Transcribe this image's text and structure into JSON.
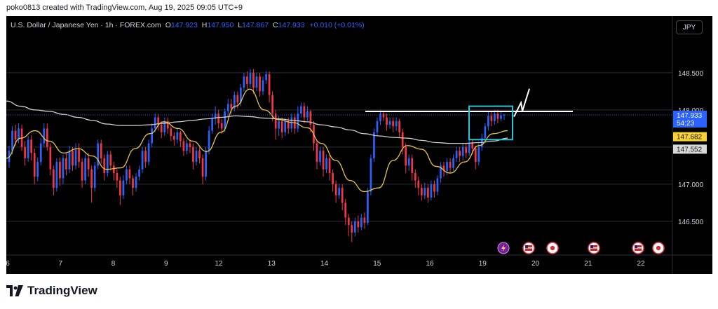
{
  "caption": "poko0813 created with TradingView.com, Aug 19, 2025 09:05 UTC+9",
  "legend": {
    "symbol": "U.S. Dollar / Japanese Yen · 1h · FOREX.com",
    "o_label": "O",
    "o_value": "147.923",
    "h_label": "H",
    "h_value": "147.950",
    "l_label": "L",
    "l_value": "147.867",
    "c_label": "C",
    "c_value": "147.933",
    "change": "+0.010 (+0.01%)"
  },
  "currency_button": "JPY",
  "brand": {
    "name": "TradingView"
  },
  "colors": {
    "up": "#2962ff",
    "down": "#f23645",
    "ma_fast": "#e8c547",
    "ma_slow": "#d4cfc4",
    "box": "#26c6da",
    "axis_text": "#d1d4dc",
    "grid": "#2a2e39"
  },
  "icons": [
    "lightning-event-icon",
    "us-flag-icon",
    "japan-flag-icon",
    "us-flag-icon",
    "us-flag-icon",
    "japan-flag-icon"
  ],
  "chart_data": {
    "type": "candlestick",
    "symbol": "USDJPY",
    "timeframe": "1h",
    "x_tick_labels": [
      "6",
      "7",
      "8",
      "9",
      "12",
      "13",
      "14",
      "15",
      "16",
      "19",
      "20",
      "21",
      "22"
    ],
    "y_tick_labels": [
      "148.500",
      "148.000",
      "147.500",
      "147.000",
      "146.500"
    ],
    "ylim": [
      146.15,
      148.98
    ],
    "price_labels": [
      {
        "value": 147.933,
        "text": "147.933",
        "sub": "54:23",
        "color": "#2962ff"
      },
      {
        "value": 147.682,
        "text": "147.682",
        "color": "#f9d132"
      },
      {
        "value": 147.552,
        "text": "147.552",
        "color": "#d9d9d9"
      }
    ],
    "resistance_level": 147.98,
    "highlight_box": {
      "price_top": 148.05,
      "price_bottom": 147.6
    },
    "ma_fast": [
      147.35,
      147.62,
      147.72,
      147.58,
      147.42,
      147.48,
      147.38,
      147.2,
      147.22,
      147.48,
      147.68,
      147.84,
      147.75,
      147.58,
      147.44,
      147.7,
      148.05,
      148.28,
      148.0,
      147.87,
      147.83,
      147.76,
      147.55,
      147.32,
      147.05,
      146.9,
      146.95,
      147.32,
      147.52,
      147.47,
      147.24,
      147.15,
      147.3,
      147.52,
      147.68,
      147.72
    ],
    "ma_slow": [
      148.12,
      148.05,
      148.0,
      147.98,
      147.94,
      147.9,
      147.86,
      147.81,
      147.79,
      147.79,
      147.8,
      147.82,
      147.84,
      147.86,
      147.88,
      147.9,
      147.92,
      147.91,
      147.89,
      147.88,
      147.86,
      147.84,
      147.8,
      147.77,
      147.73,
      147.68,
      147.65,
      147.63,
      147.62,
      147.59,
      147.56,
      147.55,
      147.55,
      147.56,
      147.58,
      147.62
    ],
    "candles": [
      [
        147.3,
        147.45,
        147.22,
        147.52
      ],
      [
        147.45,
        147.72,
        147.4,
        147.78
      ],
      [
        147.72,
        147.6,
        147.52,
        147.8
      ],
      [
        147.6,
        147.75,
        147.55,
        147.82
      ],
      [
        147.75,
        147.5,
        147.45,
        147.8
      ],
      [
        147.5,
        147.35,
        147.25,
        147.58
      ],
      [
        147.35,
        147.6,
        147.3,
        147.65
      ],
      [
        147.6,
        147.42,
        147.32,
        147.66
      ],
      [
        147.42,
        147.1,
        147.0,
        147.48
      ],
      [
        147.1,
        147.3,
        147.04,
        147.36
      ],
      [
        147.3,
        147.55,
        147.25,
        147.62
      ],
      [
        147.55,
        147.75,
        147.5,
        147.82
      ],
      [
        147.75,
        147.5,
        147.45,
        147.82
      ],
      [
        147.5,
        147.2,
        147.12,
        147.55
      ],
      [
        147.2,
        146.95,
        146.85,
        147.25
      ],
      [
        146.95,
        147.3,
        146.9,
        147.35
      ],
      [
        147.3,
        147.08,
        146.98,
        147.36
      ],
      [
        147.08,
        147.35,
        147.0,
        147.4
      ],
      [
        147.35,
        147.2,
        147.12,
        147.42
      ],
      [
        147.2,
        147.45,
        147.15,
        147.52
      ],
      [
        147.45,
        147.25,
        147.18,
        147.5
      ],
      [
        147.25,
        147.48,
        147.2,
        147.55
      ],
      [
        147.48,
        147.3,
        147.22,
        147.55
      ],
      [
        147.3,
        147.05,
        146.95,
        147.35
      ],
      [
        147.05,
        147.35,
        147.0,
        147.4
      ],
      [
        147.35,
        147.2,
        147.1,
        147.42
      ],
      [
        147.2,
        146.95,
        146.75,
        147.25
      ],
      [
        146.95,
        147.25,
        146.9,
        147.3
      ],
      [
        147.25,
        147.55,
        147.2,
        147.6
      ],
      [
        147.55,
        147.35,
        147.28,
        147.6
      ],
      [
        147.35,
        147.15,
        147.05,
        147.4
      ],
      [
        147.15,
        147.4,
        147.1,
        147.45
      ],
      [
        147.4,
        147.25,
        147.18,
        147.45
      ],
      [
        147.25,
        147.15,
        147.05,
        147.3
      ],
      [
        147.15,
        147.05,
        146.95,
        147.2
      ],
      [
        147.05,
        146.85,
        146.72,
        147.1
      ],
      [
        146.85,
        147.05,
        146.8,
        147.12
      ],
      [
        147.05,
        147.2,
        147.0,
        147.25
      ],
      [
        147.2,
        147.08,
        147.0,
        147.25
      ],
      [
        147.08,
        146.95,
        146.85,
        147.12
      ],
      [
        146.95,
        147.1,
        146.9,
        147.15
      ],
      [
        147.1,
        147.2,
        147.05,
        147.25
      ],
      [
        147.2,
        147.45,
        147.15,
        147.5
      ],
      [
        147.45,
        147.3,
        147.22,
        147.5
      ],
      [
        147.3,
        147.55,
        147.25,
        147.6
      ],
      [
        147.55,
        147.75,
        147.5,
        147.82
      ],
      [
        147.75,
        147.9,
        147.7,
        147.95
      ],
      [
        147.9,
        147.8,
        147.72,
        147.95
      ],
      [
        147.8,
        147.7,
        147.62,
        147.85
      ],
      [
        147.7,
        147.85,
        147.65,
        147.9
      ],
      [
        147.85,
        147.75,
        147.68,
        147.9
      ],
      [
        147.75,
        147.65,
        147.58,
        147.78
      ],
      [
        147.65,
        147.6,
        147.52,
        147.7
      ],
      [
        147.6,
        147.7,
        147.55,
        147.75
      ],
      [
        147.7,
        147.58,
        147.5,
        147.72
      ],
      [
        147.58,
        147.45,
        147.38,
        147.62
      ],
      [
        147.45,
        147.55,
        147.4,
        147.6
      ],
      [
        147.55,
        147.5,
        147.42,
        147.6
      ],
      [
        147.5,
        147.3,
        147.2,
        147.55
      ],
      [
        147.3,
        147.45,
        147.25,
        147.5
      ],
      [
        147.45,
        147.35,
        147.28,
        147.5
      ],
      [
        147.35,
        147.1,
        147.0,
        147.4
      ],
      [
        147.1,
        147.45,
        147.05,
        147.5
      ],
      [
        147.45,
        147.72,
        147.4,
        147.78
      ],
      [
        147.72,
        147.88,
        147.68,
        147.95
      ],
      [
        147.88,
        147.95,
        147.8,
        148.05
      ],
      [
        147.95,
        147.82,
        147.75,
        148.0
      ],
      [
        147.82,
        147.75,
        147.68,
        147.88
      ],
      [
        147.75,
        147.98,
        147.7,
        148.02
      ],
      [
        147.98,
        148.08,
        147.92,
        148.15
      ],
      [
        148.08,
        148.02,
        147.95,
        148.15
      ],
      [
        148.02,
        148.2,
        147.98,
        148.25
      ],
      [
        148.2,
        148.1,
        148.02,
        148.25
      ],
      [
        148.1,
        148.3,
        148.05,
        148.35
      ],
      [
        148.3,
        148.45,
        148.25,
        148.5
      ],
      [
        148.45,
        148.35,
        148.28,
        148.52
      ],
      [
        148.35,
        148.5,
        148.3,
        148.55
      ],
      [
        148.5,
        148.3,
        148.22,
        148.55
      ],
      [
        148.3,
        148.45,
        148.25,
        148.5
      ],
      [
        148.45,
        148.25,
        148.18,
        148.5
      ],
      [
        148.25,
        148.4,
        148.2,
        148.45
      ],
      [
        148.4,
        148.48,
        148.35,
        148.52
      ],
      [
        148.48,
        148.2,
        148.1,
        148.52
      ],
      [
        148.2,
        147.95,
        147.85,
        148.25
      ],
      [
        147.95,
        147.75,
        147.6,
        148.0
      ],
      [
        147.75,
        147.85,
        147.65,
        147.92
      ],
      [
        147.85,
        147.7,
        147.62,
        147.9
      ],
      [
        147.7,
        147.85,
        147.65,
        147.9
      ],
      [
        147.85,
        147.75,
        147.68,
        147.9
      ],
      [
        147.75,
        147.9,
        147.7,
        147.95
      ],
      [
        147.9,
        147.75,
        147.68,
        147.95
      ],
      [
        147.75,
        147.95,
        147.7,
        148.05
      ],
      [
        147.95,
        148.05,
        147.9,
        148.1
      ],
      [
        148.05,
        147.9,
        147.82,
        148.1
      ],
      [
        147.9,
        147.98,
        147.85,
        148.05
      ],
      [
        147.98,
        147.8,
        147.7,
        148.0
      ],
      [
        147.8,
        147.55,
        147.45,
        147.85
      ],
      [
        147.55,
        147.3,
        147.2,
        147.6
      ],
      [
        147.3,
        147.45,
        147.25,
        147.5
      ],
      [
        147.45,
        147.2,
        147.1,
        147.5
      ],
      [
        147.2,
        147.35,
        147.15,
        147.4
      ],
      [
        147.35,
        147.15,
        147.05,
        147.4
      ],
      [
        147.15,
        147.0,
        146.9,
        147.2
      ],
      [
        147.0,
        146.85,
        146.75,
        147.05
      ],
      [
        146.85,
        146.95,
        146.8,
        147.0
      ],
      [
        146.95,
        146.75,
        146.65,
        147.0
      ],
      [
        146.75,
        146.55,
        146.45,
        146.8
      ],
      [
        146.55,
        146.45,
        146.3,
        146.6
      ],
      [
        146.45,
        146.35,
        146.22,
        146.5
      ],
      [
        146.35,
        146.5,
        146.3,
        146.55
      ],
      [
        146.5,
        146.42,
        146.35,
        146.58
      ],
      [
        146.42,
        146.55,
        146.38,
        146.6
      ],
      [
        146.55,
        146.48,
        146.4,
        146.62
      ],
      [
        146.48,
        146.9,
        146.45,
        146.95
      ],
      [
        146.9,
        147.35,
        146.85,
        147.4
      ],
      [
        147.35,
        147.7,
        147.3,
        147.75
      ],
      [
        147.7,
        147.85,
        147.65,
        147.9
      ],
      [
        147.85,
        147.95,
        147.8,
        148.0
      ],
      [
        147.95,
        147.9,
        147.85,
        147.98
      ],
      [
        147.9,
        147.8,
        147.72,
        147.95
      ],
      [
        147.8,
        147.85,
        147.75,
        147.9
      ],
      [
        147.85,
        147.78,
        147.7,
        147.9
      ],
      [
        147.78,
        147.85,
        147.72,
        147.9
      ],
      [
        147.85,
        147.7,
        147.62,
        147.88
      ],
      [
        147.7,
        147.5,
        147.4,
        147.75
      ],
      [
        147.5,
        147.25,
        147.15,
        147.55
      ],
      [
        147.25,
        147.35,
        147.18,
        147.4
      ],
      [
        147.35,
        147.15,
        147.05,
        147.4
      ],
      [
        147.15,
        147.05,
        146.95,
        147.2
      ],
      [
        147.05,
        146.95,
        146.85,
        147.1
      ],
      [
        146.95,
        146.85,
        146.78,
        147.0
      ],
      [
        146.85,
        146.95,
        146.8,
        147.02
      ],
      [
        146.95,
        146.82,
        146.75,
        147.0
      ],
      [
        146.82,
        147.0,
        146.78,
        147.05
      ],
      [
        147.0,
        146.9,
        146.82,
        147.05
      ],
      [
        146.9,
        147.08,
        146.85,
        147.12
      ],
      [
        147.08,
        147.25,
        147.02,
        147.3
      ],
      [
        147.25,
        147.18,
        147.1,
        147.3
      ],
      [
        147.18,
        147.3,
        147.12,
        147.35
      ],
      [
        147.3,
        147.22,
        147.15,
        147.35
      ],
      [
        147.22,
        147.35,
        147.18,
        147.4
      ],
      [
        147.35,
        147.45,
        147.3,
        147.5
      ],
      [
        147.45,
        147.38,
        147.3,
        147.5
      ],
      [
        147.38,
        147.5,
        147.32,
        147.55
      ],
      [
        147.5,
        147.42,
        147.35,
        147.55
      ],
      [
        147.42,
        147.55,
        147.38,
        147.6
      ],
      [
        147.55,
        147.48,
        147.4,
        147.6
      ],
      [
        147.48,
        147.3,
        147.2,
        147.52
      ],
      [
        147.3,
        147.5,
        147.25,
        147.55
      ],
      [
        147.5,
        147.62,
        147.45,
        147.68
      ],
      [
        147.62,
        147.78,
        147.58,
        147.82
      ],
      [
        147.78,
        147.92,
        147.72,
        147.98
      ],
      [
        147.92,
        147.85,
        147.78,
        147.98
      ],
      [
        147.85,
        147.95,
        147.8,
        148.0
      ],
      [
        147.95,
        147.88,
        147.82,
        148.0
      ],
      [
        147.88,
        147.93,
        147.85,
        147.98
      ],
      [
        147.923,
        147.933,
        147.867,
        147.95
      ]
    ]
  }
}
